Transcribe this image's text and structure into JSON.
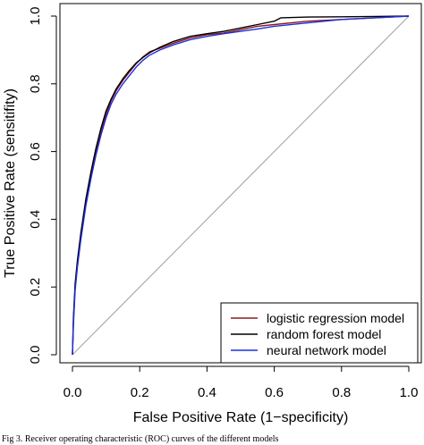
{
  "chart_data": {
    "type": "line",
    "title": "",
    "xlabel": "False Positive Rate (1−specificity)",
    "ylabel": "True Positive Rate (sensitifity)",
    "xlim": [
      0,
      1
    ],
    "ylim": [
      0,
      1
    ],
    "x_ticks": [
      "0.0",
      "0.2",
      "0.4",
      "0.6",
      "0.8",
      "1.0"
    ],
    "y_ticks": [
      "0.0",
      "0.2",
      "0.4",
      "0.6",
      "0.8",
      "1.0"
    ],
    "grid": false,
    "legend_position": "bottom-right",
    "reference_line": {
      "x": [
        0,
        1
      ],
      "y": [
        0,
        1
      ],
      "color": "#a0a0a0"
    },
    "series": [
      {
        "name": "logistic regression model",
        "color": "#8b1a1a",
        "x": [
          0,
          0.003,
          0.008,
          0.015,
          0.025,
          0.04,
          0.055,
          0.07,
          0.085,
          0.1,
          0.115,
          0.13,
          0.15,
          0.17,
          0.19,
          0.21,
          0.23,
          0.26,
          0.3,
          0.35,
          0.4,
          0.45,
          0.5,
          0.55,
          0.6,
          0.7,
          0.8,
          0.9,
          1.0
        ],
        "y": [
          0,
          0.1,
          0.2,
          0.27,
          0.35,
          0.45,
          0.53,
          0.6,
          0.66,
          0.71,
          0.75,
          0.78,
          0.81,
          0.835,
          0.86,
          0.88,
          0.895,
          0.905,
          0.92,
          0.935,
          0.945,
          0.95,
          0.96,
          0.97,
          0.975,
          0.985,
          0.99,
          0.995,
          1.0
        ]
      },
      {
        "name": "random forest model",
        "color": "#000000",
        "x": [
          0,
          0.003,
          0.008,
          0.015,
          0.025,
          0.04,
          0.055,
          0.07,
          0.085,
          0.1,
          0.115,
          0.13,
          0.15,
          0.17,
          0.19,
          0.21,
          0.23,
          0.26,
          0.3,
          0.35,
          0.4,
          0.45,
          0.5,
          0.55,
          0.6,
          0.62,
          0.7,
          0.8,
          0.9,
          1.0
        ],
        "y": [
          0,
          0.11,
          0.21,
          0.28,
          0.36,
          0.46,
          0.54,
          0.61,
          0.67,
          0.72,
          0.755,
          0.785,
          0.815,
          0.84,
          0.862,
          0.878,
          0.892,
          0.908,
          0.925,
          0.94,
          0.948,
          0.955,
          0.965,
          0.975,
          0.985,
          0.995,
          0.997,
          0.998,
          0.999,
          1.0
        ]
      },
      {
        "name": "neural network model",
        "color": "#1f2fe0",
        "x": [
          0,
          0.003,
          0.008,
          0.015,
          0.025,
          0.04,
          0.055,
          0.07,
          0.085,
          0.1,
          0.115,
          0.13,
          0.15,
          0.17,
          0.19,
          0.21,
          0.23,
          0.26,
          0.3,
          0.35,
          0.4,
          0.45,
          0.5,
          0.55,
          0.6,
          0.7,
          0.8,
          0.9,
          1.0
        ],
        "y": [
          0,
          0.09,
          0.19,
          0.26,
          0.34,
          0.44,
          0.52,
          0.59,
          0.65,
          0.7,
          0.74,
          0.77,
          0.8,
          0.825,
          0.85,
          0.87,
          0.885,
          0.9,
          0.915,
          0.93,
          0.94,
          0.948,
          0.955,
          0.962,
          0.97,
          0.98,
          0.99,
          0.995,
          1.0
        ]
      }
    ]
  },
  "caption": "Fig 3. Receiver operating characteristic (ROC) curves of the different models"
}
